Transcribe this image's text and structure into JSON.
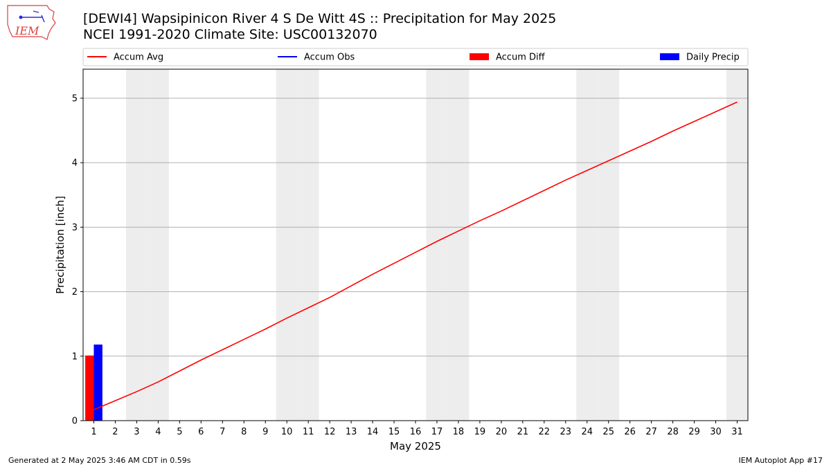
{
  "header": {
    "title_line1": "[DEWI4] Wapsipinicon River 4 S De Witt 4S :: Precipitation for May 2025",
    "title_line2": "NCEI 1991-2020 Climate Site: USC00132070"
  },
  "logo": {
    "text": "IEM"
  },
  "footer": {
    "generated": "Generated at 2 May 2025 3:46 AM CDT in 0.59s",
    "app": "IEM Autoplot App #17"
  },
  "colors": {
    "accum_avg": "#ff0000",
    "accum_obs": "#0000ff",
    "accum_diff": "#ff0000",
    "daily_precip": "#0000ff",
    "weekend_shade": "#ededed",
    "grid": "#b0b0b0"
  },
  "chart_data": {
    "type": "line",
    "xlabel": "May 2025",
    "ylabel": "Precipitation [inch]",
    "xlim": [
      0.5,
      31.5
    ],
    "ylim": [
      0,
      5.45
    ],
    "x_ticks": [
      1,
      2,
      3,
      4,
      5,
      6,
      7,
      8,
      9,
      10,
      11,
      12,
      13,
      14,
      15,
      16,
      17,
      18,
      19,
      20,
      21,
      22,
      23,
      24,
      25,
      26,
      27,
      28,
      29,
      30,
      31
    ],
    "y_ticks": [
      0,
      1,
      2,
      3,
      4,
      5
    ],
    "grid": "horizontal",
    "weekend_days": [
      3,
      4,
      10,
      11,
      17,
      18,
      24,
      25,
      31
    ],
    "legend": {
      "placement": "top",
      "entries": [
        "Accum Avg",
        "Accum Obs",
        "Accum Diff",
        "Daily Precip"
      ]
    },
    "series": [
      {
        "name": "Accum Avg",
        "type": "line",
        "x": [
          1,
          2,
          3,
          4,
          5,
          6,
          7,
          8,
          9,
          10,
          11,
          12,
          13,
          14,
          15,
          16,
          17,
          18,
          19,
          20,
          21,
          22,
          23,
          24,
          25,
          26,
          27,
          28,
          29,
          30,
          31
        ],
        "values": [
          0.17,
          0.31,
          0.45,
          0.6,
          0.77,
          0.94,
          1.1,
          1.26,
          1.42,
          1.59,
          1.75,
          1.91,
          2.09,
          2.27,
          2.44,
          2.61,
          2.78,
          2.94,
          3.1,
          3.25,
          3.41,
          3.57,
          3.73,
          3.88,
          4.03,
          4.18,
          4.33,
          4.49,
          4.64,
          4.79,
          4.94
        ]
      },
      {
        "name": "Accum Obs",
        "type": "line",
        "x": [],
        "values": []
      },
      {
        "name": "Accum Diff",
        "type": "bar",
        "x": [
          1
        ],
        "values": [
          1.01
        ]
      },
      {
        "name": "Daily Precip",
        "type": "bar",
        "x": [
          1
        ],
        "values": [
          1.18
        ]
      }
    ]
  }
}
